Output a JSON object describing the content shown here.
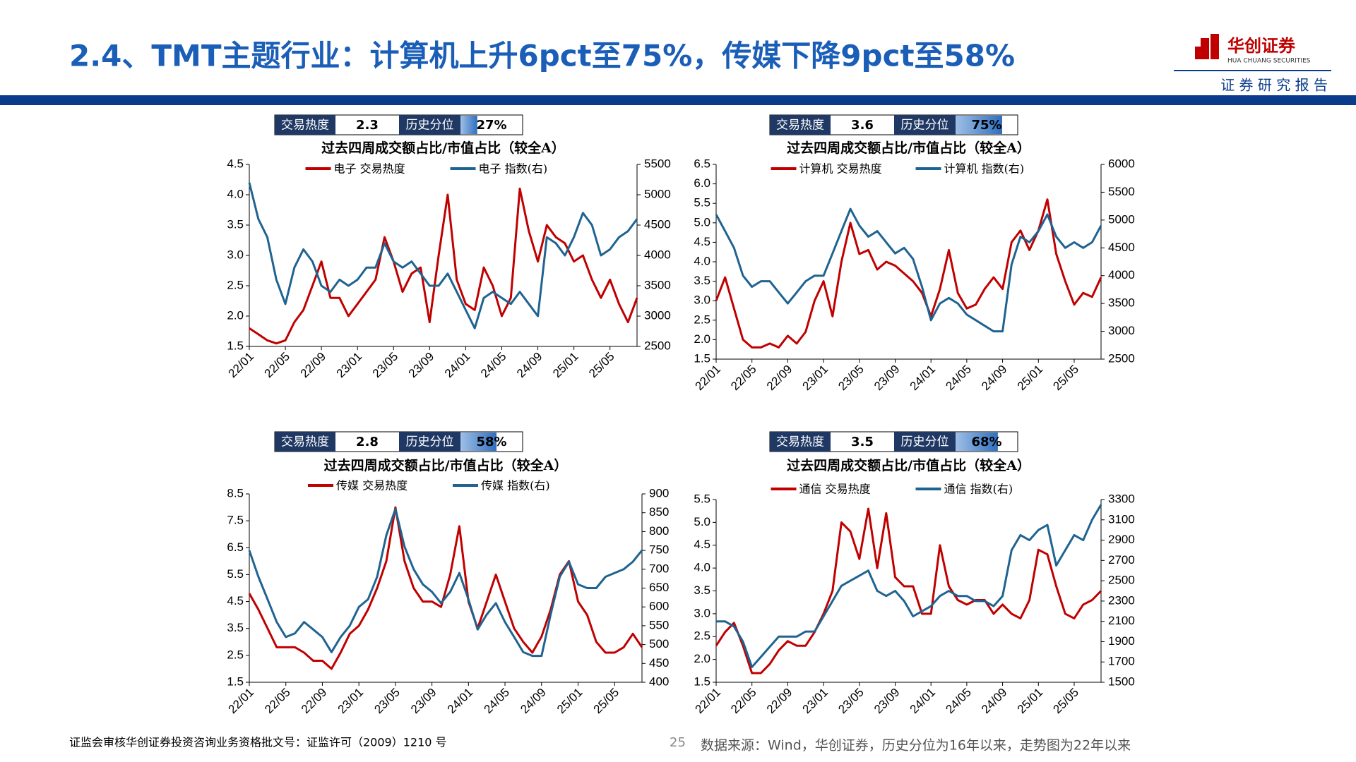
{
  "header": {
    "title": "2.4、TMT主题行业：计算机上升6pct至75%，传媒下降9pct至58%",
    "logo_name": "华创证券",
    "logo_en": "HUA CHUANG SECURITIES",
    "tag": "证 券 研 究 报 告"
  },
  "chart_data": [
    {
      "type": "line",
      "heat_box": {
        "label1": "交易热度",
        "heat": 2.3,
        "label2": "历史分位",
        "percentile": {
          "value": 27,
          "label": "27%"
        }
      },
      "title": "过去四周成交额占比/市值占比（较全A）",
      "categories": [
        "22/01",
        null,
        null,
        null,
        "22/05",
        null,
        null,
        null,
        "22/09",
        null,
        null,
        null,
        "23/01",
        null,
        null,
        null,
        "23/05",
        null,
        null,
        null,
        "23/09",
        null,
        null,
        null,
        "24/01",
        null,
        null,
        null,
        "24/05",
        null,
        null,
        null,
        "24/09",
        null,
        null,
        null,
        "25/01",
        null,
        null,
        null,
        "25/05",
        null,
        null,
        null
      ],
      "ylim": [
        1.5,
        4.5
      ],
      "yticks": [
        1.5,
        {
          "value": 2,
          "label": "2.0"
        },
        2.5,
        {
          "value": 3,
          "label": "3.0"
        },
        3.5,
        {
          "value": 4,
          "label": "4.0"
        },
        4.5
      ],
      "y2lim": [
        2500,
        5500
      ],
      "y2ticks": [
        2500,
        3000,
        3500,
        4000,
        4500,
        5000,
        5500
      ],
      "series": [
        {
          "name": "电子 交易热度",
          "color": "#c00000",
          "values": [
            1.8,
            1.7,
            1.6,
            1.55,
            1.6,
            1.9,
            2.1,
            2.5,
            2.9,
            2.3,
            2.3,
            2.0,
            2.2,
            2.4,
            2.6,
            3.3,
            2.9,
            2.4,
            2.7,
            2.8,
            1.9,
            3.0,
            4.0,
            2.6,
            2.2,
            2.1,
            2.8,
            2.5,
            2.0,
            2.3,
            4.1,
            3.4,
            2.9,
            3.5,
            3.3,
            3.2,
            2.9,
            3.0,
            2.6,
            2.3,
            2.6,
            2.2,
            1.9,
            2.3
          ]
        },
        {
          "name": "电子 指数(右)",
          "color": "#1f6391",
          "axis": "y2",
          "values": [
            5200,
            4600,
            4300,
            3600,
            3200,
            3800,
            4100,
            3900,
            3500,
            3400,
            3600,
            3500,
            3600,
            3800,
            3800,
            4200,
            3900,
            3800,
            3900,
            3700,
            3500,
            3500,
            3700,
            3400,
            3100,
            2800,
            3300,
            3400,
            3300,
            3200,
            3400,
            3200,
            3000,
            4300,
            4200,
            4000,
            4300,
            4700,
            4500,
            4000,
            4100,
            4300,
            4400,
            4600
          ]
        }
      ]
    },
    {
      "type": "line",
      "heat_box": {
        "label1": "交易热度",
        "heat": 3.6,
        "label2": "历史分位",
        "percentile": {
          "value": 75,
          "label": "75%"
        }
      },
      "title": "过去四周成交额占比/市值占比（较全A）",
      "categories": [
        "22/01",
        null,
        null,
        null,
        "22/05",
        null,
        null,
        null,
        "22/09",
        null,
        null,
        null,
        "23/01",
        null,
        null,
        null,
        "23/05",
        null,
        null,
        null,
        "23/09",
        null,
        null,
        null,
        "24/01",
        null,
        null,
        null,
        "24/05",
        null,
        null,
        null,
        "24/09",
        null,
        null,
        null,
        "25/01",
        null,
        null,
        null,
        "25/05",
        null,
        null,
        null
      ],
      "ylim": [
        1.5,
        6.5
      ],
      "yticks": [
        1.5,
        {
          "value": 2,
          "label": "2.0"
        },
        2.5,
        {
          "value": 3,
          "label": "3.0"
        },
        3.5,
        {
          "value": 4,
          "label": "4.0"
        },
        4.5,
        {
          "value": 5,
          "label": "5.0"
        },
        5.5,
        {
          "value": 6,
          "label": "6.0"
        },
        6.5
      ],
      "y2lim": [
        2500,
        6000
      ],
      "y2ticks": [
        2500,
        3000,
        3500,
        4000,
        4500,
        5000,
        5500,
        6000
      ],
      "series": [
        {
          "name": "计算机 交易热度",
          "color": "#c00000",
          "values": [
            3.0,
            3.6,
            2.8,
            2.0,
            1.8,
            1.8,
            1.9,
            1.8,
            2.1,
            1.9,
            2.2,
            3.0,
            3.5,
            2.6,
            4.0,
            5.0,
            4.2,
            4.3,
            3.8,
            4.0,
            3.9,
            3.7,
            3.5,
            3.2,
            2.6,
            3.3,
            4.3,
            3.2,
            2.8,
            2.9,
            3.3,
            3.6,
            3.3,
            4.5,
            4.8,
            4.3,
            4.8,
            5.6,
            4.2,
            3.5,
            2.9,
            3.2,
            3.1,
            3.6
          ]
        },
        {
          "name": "计算机 指数(右)",
          "color": "#1f6391",
          "axis": "y2",
          "values": [
            5100,
            4800,
            4500,
            4000,
            3800,
            3900,
            3900,
            3700,
            3500,
            3700,
            3900,
            4000,
            4000,
            4400,
            4800,
            5200,
            4900,
            4700,
            4800,
            4600,
            4400,
            4500,
            4300,
            3800,
            3200,
            3500,
            3600,
            3500,
            3300,
            3200,
            3100,
            3000,
            3000,
            4200,
            4700,
            4600,
            4800,
            5100,
            4700,
            4500,
            4600,
            4500,
            4600,
            4900
          ]
        }
      ]
    },
    {
      "type": "line",
      "heat_box": {
        "label1": "交易热度",
        "heat": 2.8,
        "label2": "历史分位",
        "percentile": {
          "value": 58,
          "label": "58%"
        }
      },
      "title": "过去四周成交额占比/市值占比（较全A）",
      "categories": [
        "22/01",
        null,
        null,
        null,
        "22/05",
        null,
        null,
        null,
        "22/09",
        null,
        null,
        null,
        "23/01",
        null,
        null,
        null,
        "23/05",
        null,
        null,
        null,
        "23/09",
        null,
        null,
        null,
        "24/01",
        null,
        null,
        null,
        "24/05",
        null,
        null,
        null,
        "24/09",
        null,
        null,
        null,
        "25/01",
        null,
        null,
        null,
        "25/05",
        null,
        null,
        null
      ],
      "ylim": [
        1.5,
        8.5
      ],
      "yticks": [
        1.5,
        2.5,
        3.5,
        4.5,
        5.5,
        6.5,
        7.5,
        8.5
      ],
      "y2lim": [
        400,
        900
      ],
      "y2ticks": [
        400,
        450,
        500,
        550,
        600,
        650,
        700,
        750,
        800,
        850,
        900
      ],
      "series": [
        {
          "name": "传媒 交易热度",
          "color": "#c00000",
          "values": [
            4.8,
            4.2,
            3.5,
            2.8,
            2.8,
            2.8,
            2.6,
            2.3,
            2.3,
            2.0,
            2.6,
            3.3,
            3.6,
            4.2,
            5.0,
            6.0,
            8.0,
            6.0,
            5.0,
            4.5,
            4.5,
            4.3,
            5.5,
            7.3,
            4.5,
            3.5,
            4.5,
            5.5,
            4.5,
            3.5,
            3.0,
            2.6,
            3.2,
            4.2,
            5.5,
            6.0,
            4.5,
            4.0,
            3.0,
            2.6,
            2.6,
            2.8,
            3.3,
            2.8
          ]
        },
        {
          "name": "传媒 指数(右)",
          "color": "#1f6391",
          "axis": "y2",
          "values": [
            750,
            680,
            620,
            560,
            520,
            530,
            560,
            540,
            520,
            480,
            520,
            550,
            600,
            620,
            680,
            790,
            860,
            760,
            700,
            660,
            640,
            610,
            640,
            690,
            620,
            540,
            580,
            610,
            560,
            520,
            480,
            470,
            470,
            580,
            680,
            720,
            660,
            650,
            650,
            680,
            690,
            700,
            720,
            750
          ]
        }
      ]
    },
    {
      "type": "line",
      "heat_box": {
        "label1": "交易热度",
        "heat": 3.5,
        "label2": "历史分位",
        "percentile": {
          "value": 68,
          "label": "68%"
        }
      },
      "title": "过去四周成交额占比/市值占比（较全A）",
      "categories": [
        "22/01",
        null,
        null,
        null,
        "22/05",
        null,
        null,
        null,
        "22/09",
        null,
        null,
        null,
        "23/01",
        null,
        null,
        null,
        "23/05",
        null,
        null,
        null,
        "23/09",
        null,
        null,
        null,
        "24/01",
        null,
        null,
        null,
        "24/05",
        null,
        null,
        null,
        "24/09",
        null,
        null,
        null,
        "25/01",
        null,
        null,
        null,
        "25/05",
        null,
        null,
        null
      ],
      "ylim": [
        1.5,
        5.5
      ],
      "yticks": [
        1.5,
        {
          "value": 2,
          "label": "2.0"
        },
        2.5,
        {
          "value": 3,
          "label": "3.0"
        },
        3.5,
        {
          "value": 4,
          "label": "4.0"
        },
        4.5,
        {
          "value": 5,
          "label": "5.0"
        },
        5.5
      ],
      "y2lim": [
        1500,
        3300
      ],
      "y2ticks": [
        1500,
        1700,
        1900,
        2100,
        2300,
        2500,
        2700,
        2900,
        3100,
        3300
      ],
      "series": [
        {
          "name": "通信 交易热度",
          "color": "#c00000",
          "values": [
            2.3,
            2.6,
            2.8,
            2.3,
            1.7,
            1.7,
            1.9,
            2.2,
            2.4,
            2.3,
            2.3,
            2.6,
            3.0,
            3.5,
            5.0,
            4.8,
            4.2,
            5.3,
            4.0,
            5.2,
            3.8,
            3.6,
            3.6,
            3.0,
            3.0,
            4.5,
            3.6,
            3.3,
            3.2,
            3.3,
            3.3,
            3.0,
            3.2,
            3.0,
            2.9,
            3.3,
            4.4,
            4.3,
            3.6,
            3.0,
            2.9,
            3.2,
            3.3,
            3.5
          ]
        },
        {
          "name": "通信 指数(右)",
          "color": "#1f6391",
          "axis": "y2",
          "values": [
            2100,
            2100,
            2050,
            1900,
            1650,
            1750,
            1850,
            1950,
            1950,
            1950,
            2000,
            2000,
            2150,
            2300,
            2450,
            2500,
            2550,
            2600,
            2400,
            2350,
            2400,
            2300,
            2150,
            2200,
            2250,
            2350,
            2400,
            2350,
            2350,
            2300,
            2300,
            2250,
            2350,
            2800,
            2950,
            2900,
            3000,
            3050,
            2650,
            2800,
            2950,
            2900,
            3100,
            3250
          ]
        }
      ]
    }
  ],
  "footer": {
    "license": "证监会审核华创证券投资咨询业务资格批文号：证监许可（2009）1210 号",
    "page": "25",
    "source": "数据来源：Wind，华创证券，历史分位为16年以来，走势图为22年以来"
  }
}
